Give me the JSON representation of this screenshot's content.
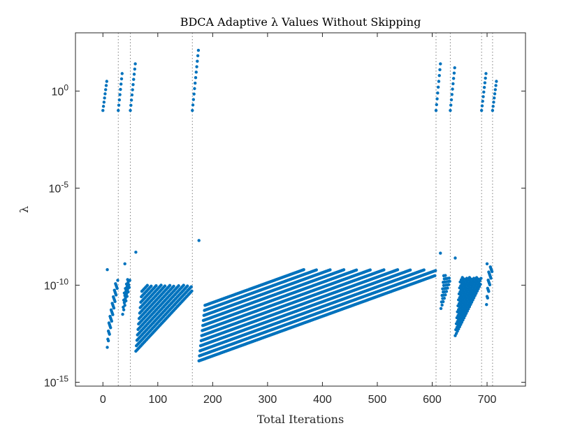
{
  "chart_data": {
    "type": "scatter",
    "title": "BDCA Adaptive λ Values Without Skipping",
    "xlabel": "Total Iterations",
    "ylabel": "λ",
    "xlim": [
      -50,
      770
    ],
    "ylim_log10": [
      -15.2,
      3
    ],
    "yscale": "log",
    "x_ticks": [
      0,
      100,
      200,
      300,
      400,
      500,
      600,
      700
    ],
    "y_ticks": [
      {
        "base": "10",
        "exp": "0",
        "log10": 0
      },
      {
        "base": "10",
        "exp": "-5",
        "log10": -5
      },
      {
        "base": "10",
        "exp": "-10",
        "log10": -10
      },
      {
        "base": "10",
        "exp": "-15",
        "log10": -15
      }
    ],
    "grid": false,
    "point_color": "#0072BD",
    "restart_lines_x": [
      28,
      50,
      163,
      607,
      633,
      690,
      710
    ],
    "high_segments": [
      {
        "x0": 0,
        "x1": 7,
        "log_start": -1,
        "log_end": 0.5
      },
      {
        "x0": 28,
        "x1": 35,
        "log_start": -1,
        "log_end": 0.9
      },
      {
        "x0": 50,
        "x1": 59,
        "log_start": -1,
        "log_end": 1.4
      },
      {
        "x0": 163,
        "x1": 174,
        "log_start": -1,
        "log_end": 2.1
      },
      {
        "x0": 607,
        "x1": 615,
        "log_start": -1,
        "log_end": 1.4
      },
      {
        "x0": 633,
        "x1": 641,
        "log_start": -1,
        "log_end": 1.2
      },
      {
        "x0": 690,
        "x1": 698,
        "log_start": -1,
        "log_end": 0.9
      },
      {
        "x0": 710,
        "x1": 717,
        "log_start": -1,
        "log_end": 0.5
      }
    ],
    "low_segments": [
      {
        "x0": 8,
        "x1": 27,
        "low_start": -13.2,
        "low_end": -10.0,
        "rows": 2
      },
      {
        "x0": 36,
        "x1": 49,
        "low_start": -11.5,
        "low_end": -10.0,
        "rows": 2
      },
      {
        "x0": 60,
        "x1": 162,
        "low_start": -13.4,
        "low_end": -10.3,
        "rows": 6
      },
      {
        "x0": 175,
        "x1": 606,
        "low_start": -13.9,
        "low_end": -9.5,
        "rows": 6
      },
      {
        "x0": 616,
        "x1": 632,
        "low_start": -11.2,
        "low_end": -9.8,
        "rows": 3
      },
      {
        "x0": 642,
        "x1": 689,
        "low_start": -12.6,
        "low_end": -9.9,
        "rows": 5
      },
      {
        "x0": 699,
        "x1": 709,
        "low_start": -11.0,
        "low_end": -9.3,
        "rows": 3
      }
    ],
    "outliers": [
      {
        "x": 8,
        "log10": -9.2
      },
      {
        "x": 40,
        "log10": -8.9
      },
      {
        "x": 60,
        "log10": -8.3
      },
      {
        "x": 175,
        "log10": -7.7
      },
      {
        "x": 615,
        "log10": -8.35
      },
      {
        "x": 642,
        "log10": -8.6
      },
      {
        "x": 700,
        "log10": -8.9
      }
    ]
  }
}
